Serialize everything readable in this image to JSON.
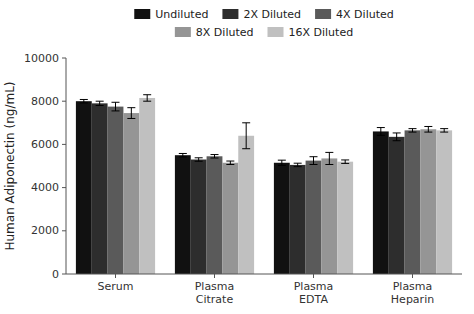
{
  "chart_data": {
    "type": "bar",
    "categories": [
      "Serum",
      "Plasma\nCitrate",
      "Plasma\nEDTA",
      "Plasma\nHeparin"
    ],
    "series": [
      {
        "name": "Undiluted",
        "color": "#111111",
        "values": [
          8000,
          5500,
          5150,
          6600
        ],
        "errors": [
          80,
          80,
          120,
          180
        ]
      },
      {
        "name": "2X Diluted",
        "color": "#2d2d2d",
        "values": [
          7900,
          5300,
          5050,
          6350
        ],
        "errors": [
          100,
          80,
          80,
          180
        ]
      },
      {
        "name": "4X Diluted",
        "color": "#5a5a5a",
        "values": [
          7750,
          5450,
          5250,
          6650
        ],
        "errors": [
          200,
          80,
          180,
          80
        ]
      },
      {
        "name": "8X Diluted",
        "color": "#959595",
        "values": [
          7450,
          5150,
          5350,
          6700
        ],
        "errors": [
          250,
          80,
          280,
          130
        ]
      },
      {
        "name": "16X Diluted",
        "color": "#c0c0c0",
        "values": [
          8150,
          6400,
          5200,
          6650
        ],
        "errors": [
          150,
          600,
          80,
          80
        ]
      }
    ],
    "ylabel": "Human Adiponectin (ng/mL)",
    "ylim": [
      0,
      10000
    ],
    "yticks": [
      0,
      2000,
      4000,
      6000,
      8000,
      10000
    ],
    "grid": false,
    "legend": "top"
  }
}
